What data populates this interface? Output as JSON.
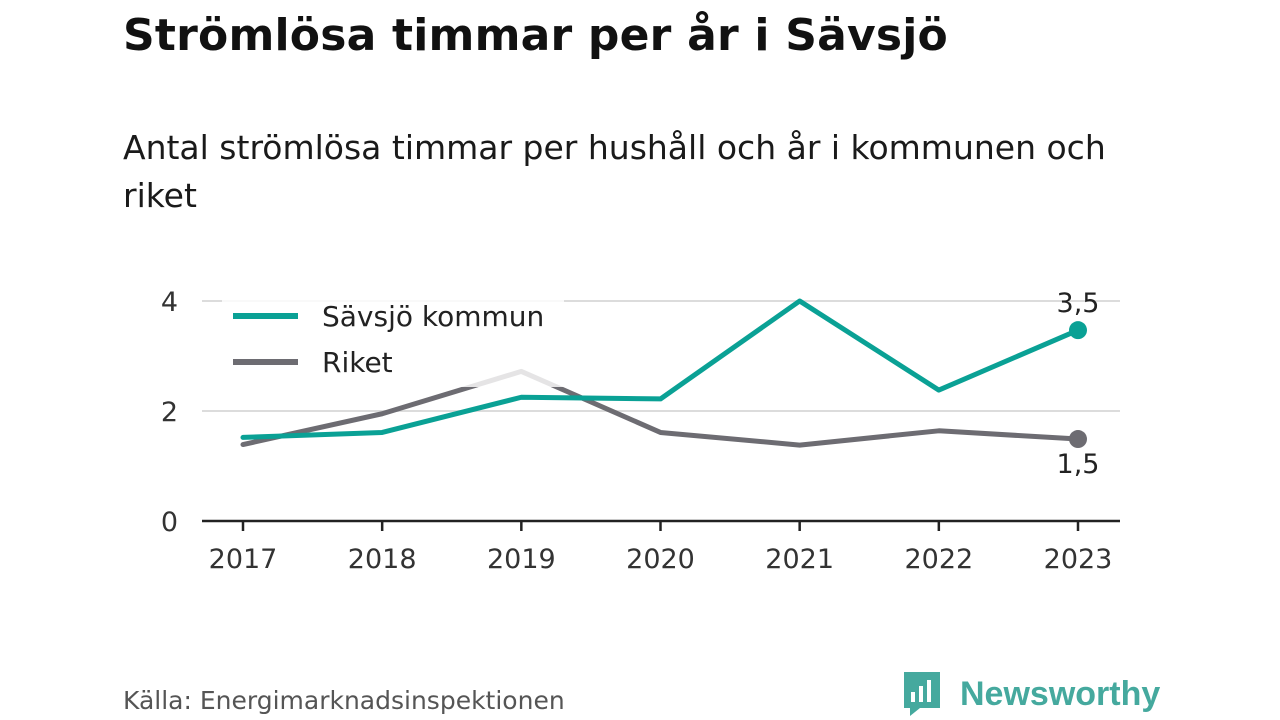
{
  "title": "Strömlösa timmar per år i Sävsjö",
  "subtitle": "Antal strömlösa timmar per hushåll och år i kommunen och riket",
  "source": "Källa: Energimarknadsinspektionen",
  "brand": {
    "name": "Newsworthy",
    "icon": "newsworthy-logo-icon",
    "color": "#45a99e"
  },
  "chart_data": {
    "type": "line",
    "x": [
      "2017",
      "2018",
      "2019",
      "2020",
      "2021",
      "2022",
      "2023"
    ],
    "ylim": [
      0,
      4
    ],
    "yticks": [
      0,
      2,
      4
    ],
    "grid": true,
    "legend_position": "top-left",
    "series": [
      {
        "name": "Sävsjö kommun",
        "color": "#0aa195",
        "values": [
          1.52,
          1.61,
          2.25,
          2.22,
          4.0,
          2.38,
          3.47
        ],
        "end_label": "3,5"
      },
      {
        "name": "Riket",
        "color": "#6d6c72",
        "values": [
          1.39,
          1.95,
          2.72,
          1.61,
          1.38,
          1.64,
          1.49
        ],
        "end_label": "1,5"
      }
    ]
  }
}
